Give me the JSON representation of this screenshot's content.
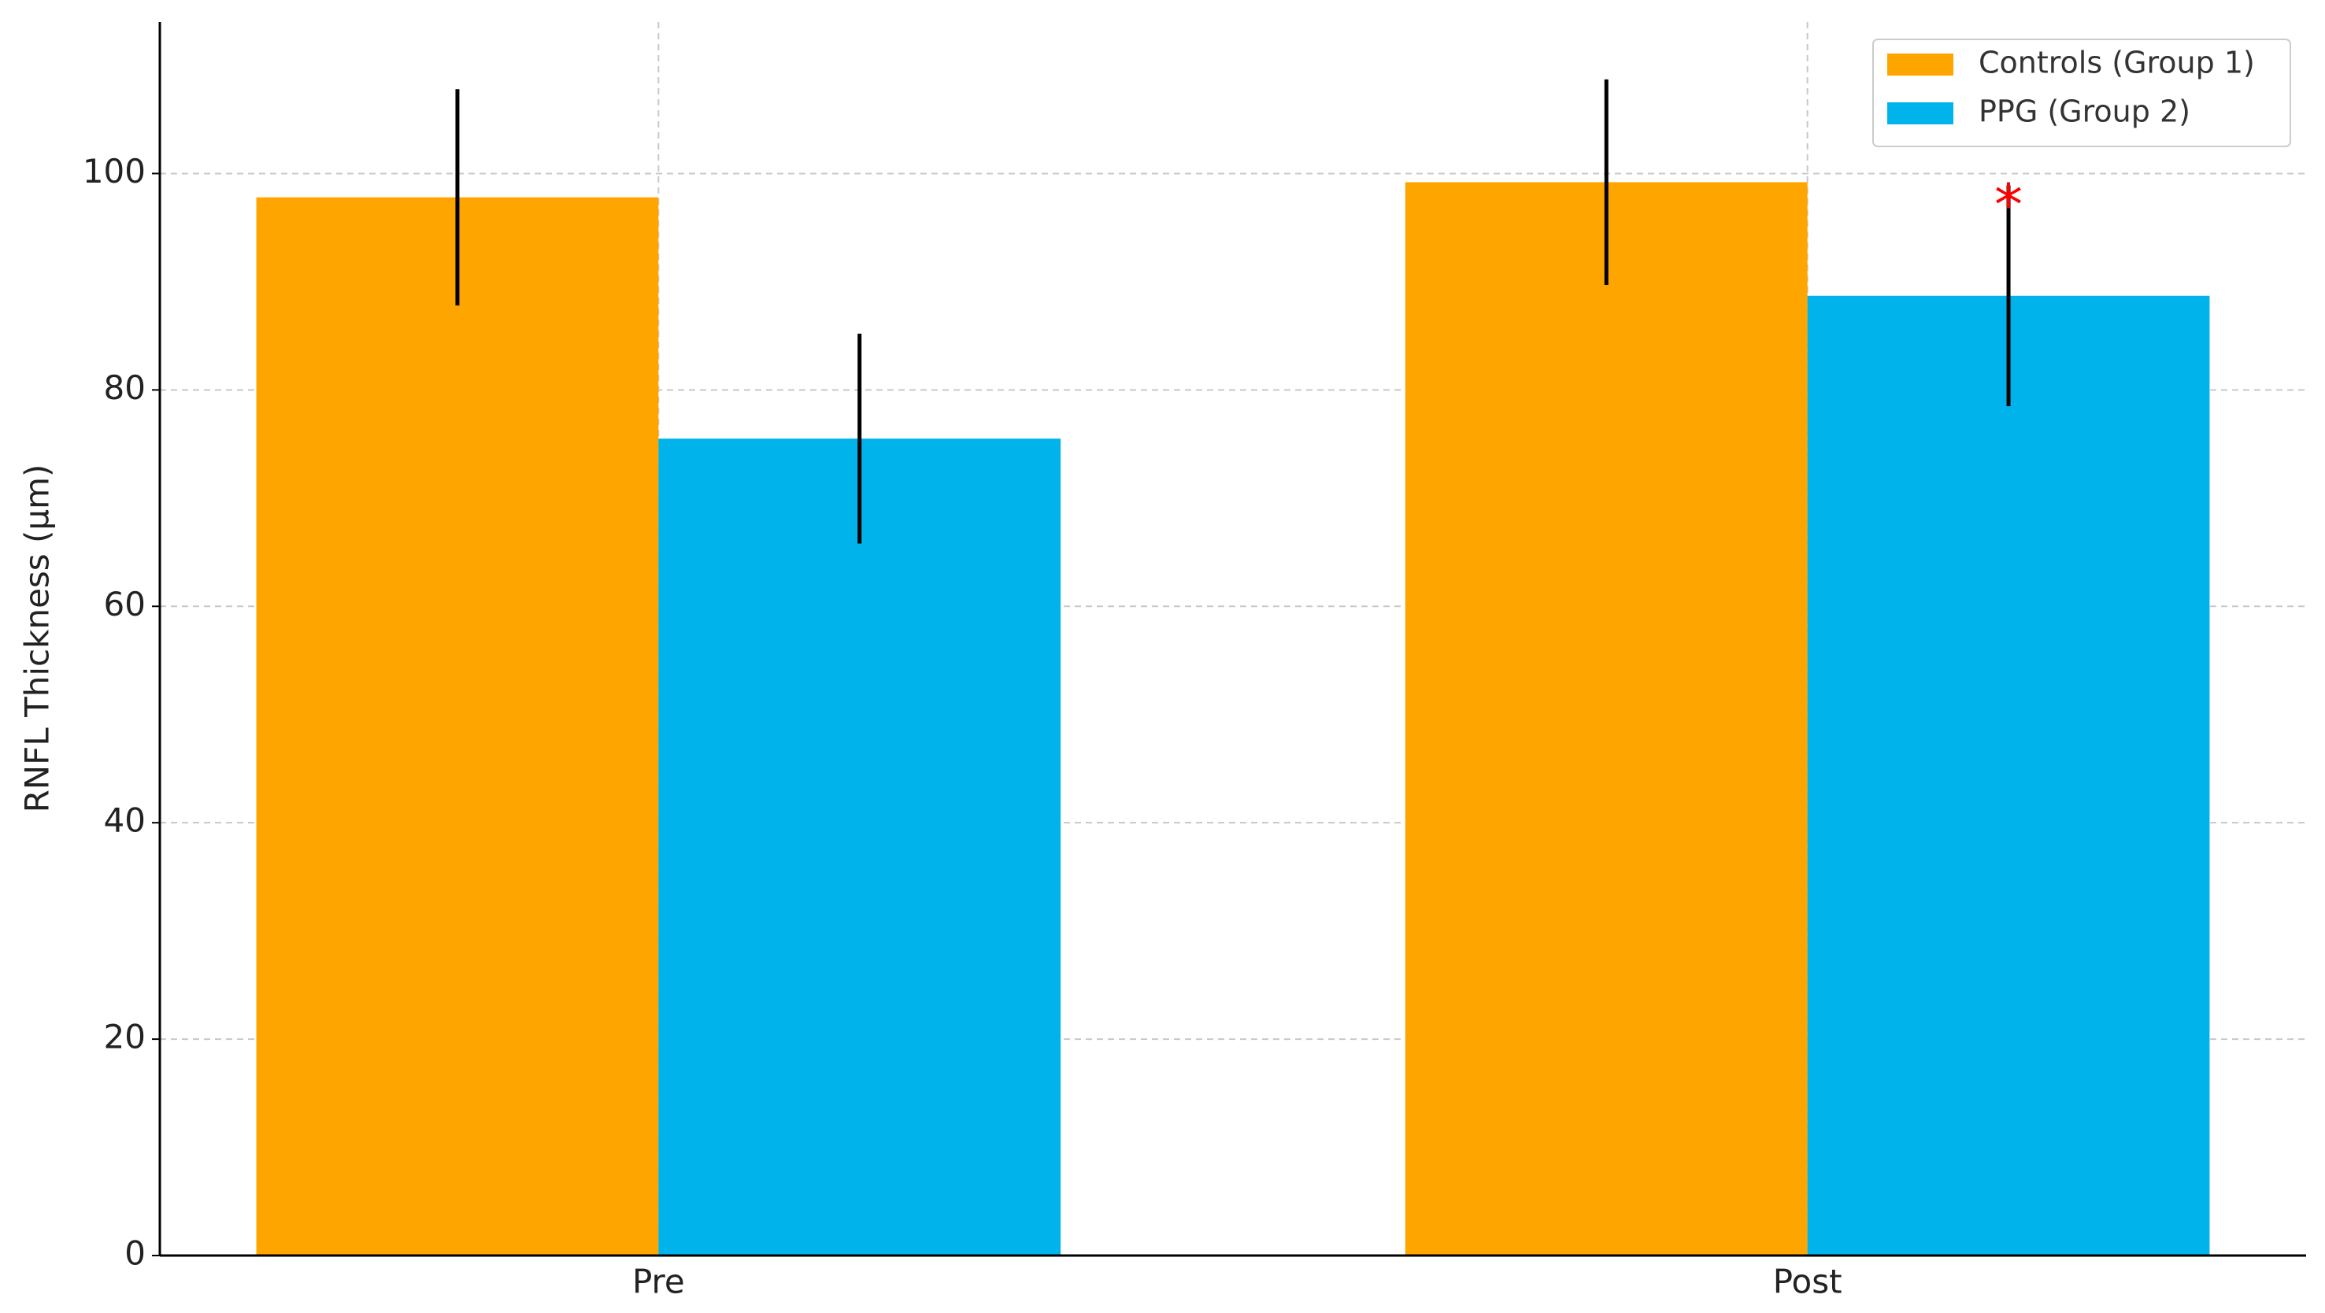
{
  "chart_data": {
    "type": "bar",
    "y_label": "RNFL Thickness (µm)",
    "categories": [
      "Pre",
      "Post"
    ],
    "series": [
      {
        "name": "Controls (Group 1)",
        "color": "#ffa500",
        "values": [
          97.8,
          99.2
        ],
        "errors": [
          10,
          9.5
        ]
      },
      {
        "name": "PPG (Group 2)",
        "color": "#00b3eb",
        "values": [
          75.5,
          88.7
        ],
        "errors": [
          9.7,
          10.2
        ],
        "annotations": [
          null,
          "*"
        ],
        "annotation_color": "#ff0000"
      }
    ],
    "ylim": [
      0,
      114
    ],
    "yticks": [
      0,
      20,
      40,
      60,
      80,
      100
    ],
    "grid": true,
    "legend": "upper right"
  }
}
